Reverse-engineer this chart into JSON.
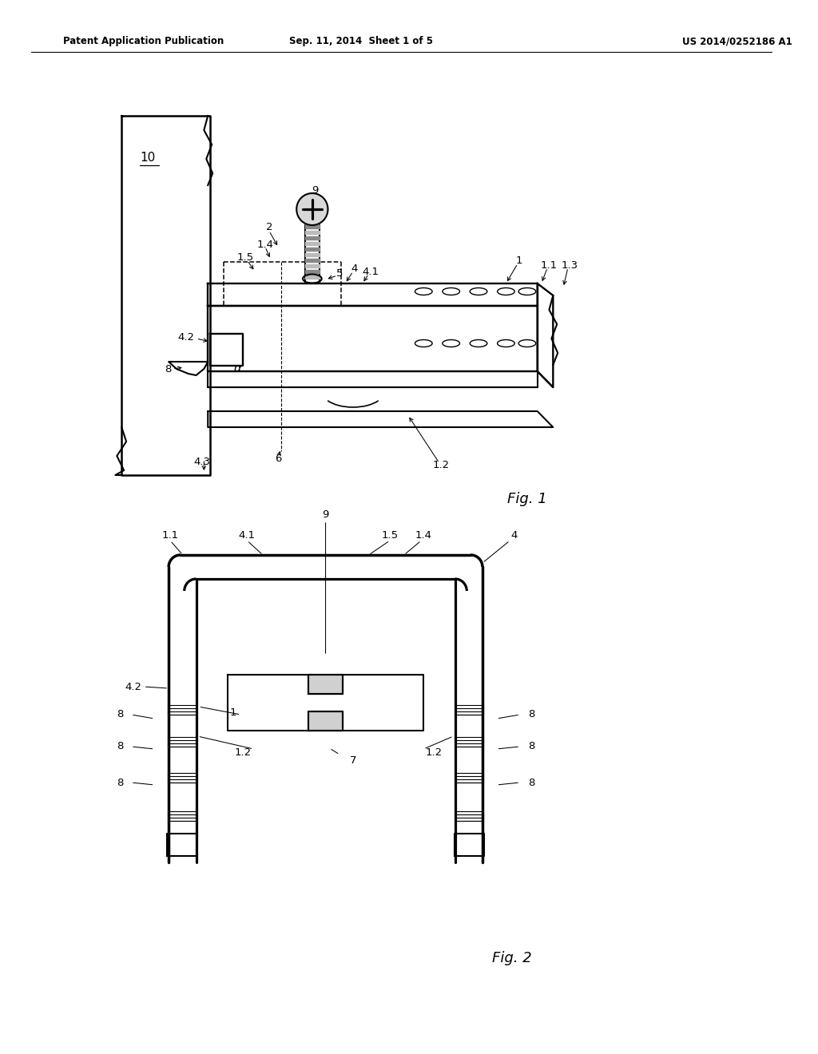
{
  "bg_color": "#ffffff",
  "header_left": "Patent Application Publication",
  "header_center": "Sep. 11, 2014  Sheet 1 of 5",
  "header_right": "US 2014/0252186 A1",
  "fig1_label": "Fig. 1",
  "fig2_label": "Fig. 2",
  "line_color": "#000000",
  "line_width": 1.5,
  "thin_line": 0.8,
  "thick_line": 2.2
}
